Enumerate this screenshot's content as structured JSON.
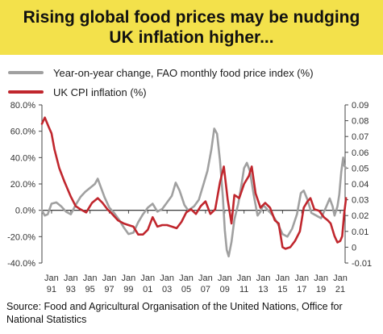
{
  "title": "Rising global food prices may be nudging UK inflation higher...",
  "source": "Source: Food and Agricultural Organisation of the United Nations, Office for National Statistics",
  "colors": {
    "banner": "#f3e14b",
    "fao": "#a0a0a0",
    "cpi": "#c0262d"
  },
  "chart_data": {
    "type": "line",
    "title": "Rising global food prices may be nudging UK inflation higher...",
    "x_tick_labels": [
      [
        "Jan",
        "91"
      ],
      [
        "Jan",
        "93"
      ],
      [
        "Jan",
        "95"
      ],
      [
        "Jan",
        "97"
      ],
      [
        "Jan",
        "99"
      ],
      [
        "Jan",
        "01"
      ],
      [
        "Jan",
        "03"
      ],
      [
        "Jan",
        "05"
      ],
      [
        "Jan",
        "07"
      ],
      [
        "Jan",
        "09"
      ],
      [
        "Jan",
        "11"
      ],
      [
        "Jan",
        "13"
      ],
      [
        "Jan",
        "15"
      ],
      [
        "Jan",
        "17"
      ],
      [
        "Jan",
        "19"
      ],
      [
        "Jan",
        "21"
      ]
    ],
    "xlim": [
      1990,
      2021.5
    ],
    "y_left": {
      "ticks": [
        "80.0%",
        "60.0%",
        "40.0%",
        "20.0%",
        "0.0%",
        "-20.0%",
        "-40.0%"
      ],
      "lim": [
        -40,
        80
      ]
    },
    "y_right": {
      "ticks": [
        "0.09",
        "0.08",
        "0.07",
        "0.06",
        "0.05",
        "0.04",
        "0.03",
        "0.02",
        "0.01",
        "0",
        "-0.01"
      ],
      "lim": [
        -0.01,
        0.09
      ]
    },
    "grid": false,
    "legend": "top-left",
    "series": [
      {
        "name": "Year-on-year change, FAO monthly food price index (%)",
        "axis": "left",
        "points": [
          [
            1990.0,
            0
          ],
          [
            1990.3,
            -4
          ],
          [
            1990.6,
            -3
          ],
          [
            1991.0,
            5
          ],
          [
            1991.5,
            6
          ],
          [
            1992.0,
            3
          ],
          [
            1992.5,
            -1
          ],
          [
            1993.0,
            -3
          ],
          [
            1993.5,
            4
          ],
          [
            1994.0,
            10
          ],
          [
            1994.5,
            14
          ],
          [
            1995.0,
            17
          ],
          [
            1995.5,
            20
          ],
          [
            1995.8,
            24
          ],
          [
            1996.1,
            18
          ],
          [
            1996.5,
            10
          ],
          [
            1997.0,
            2
          ],
          [
            1997.5,
            -2
          ],
          [
            1998.0,
            -7
          ],
          [
            1998.5,
            -13
          ],
          [
            1999.0,
            -18
          ],
          [
            1999.5,
            -17
          ],
          [
            2000.0,
            -9
          ],
          [
            2000.5,
            -3
          ],
          [
            2001.0,
            2
          ],
          [
            2001.5,
            5
          ],
          [
            2002.0,
            -1
          ],
          [
            2002.5,
            1
          ],
          [
            2003.0,
            6
          ],
          [
            2003.5,
            11
          ],
          [
            2003.9,
            21
          ],
          [
            2004.3,
            15
          ],
          [
            2004.8,
            4
          ],
          [
            2005.2,
            0
          ],
          [
            2005.8,
            3
          ],
          [
            2006.3,
            8
          ],
          [
            2006.8,
            20
          ],
          [
            2007.2,
            30
          ],
          [
            2007.6,
            46
          ],
          [
            2007.9,
            62
          ],
          [
            2008.2,
            58
          ],
          [
            2008.5,
            38
          ],
          [
            2008.8,
            10
          ],
          [
            2009.0,
            -15
          ],
          [
            2009.2,
            -30
          ],
          [
            2009.4,
            -35
          ],
          [
            2009.7,
            -24
          ],
          [
            2010.0,
            -7
          ],
          [
            2010.4,
            5
          ],
          [
            2010.7,
            18
          ],
          [
            2011.0,
            32
          ],
          [
            2011.3,
            36
          ],
          [
            2011.6,
            30
          ],
          [
            2012.0,
            12
          ],
          [
            2012.4,
            -4
          ],
          [
            2012.7,
            -1
          ],
          [
            2013.0,
            4
          ],
          [
            2013.5,
            0
          ],
          [
            2014.0,
            -4
          ],
          [
            2014.5,
            -10
          ],
          [
            2015.0,
            -18
          ],
          [
            2015.5,
            -20
          ],
          [
            2016.0,
            -14
          ],
          [
            2016.5,
            -3
          ],
          [
            2016.9,
            13
          ],
          [
            2017.2,
            15
          ],
          [
            2017.6,
            8
          ],
          [
            2018.0,
            -2
          ],
          [
            2018.5,
            -4
          ],
          [
            2019.0,
            -6
          ],
          [
            2019.5,
            2
          ],
          [
            2019.9,
            9
          ],
          [
            2020.2,
            3
          ],
          [
            2020.4,
            -4
          ],
          [
            2020.7,
            3
          ],
          [
            2020.9,
            12
          ],
          [
            2021.1,
            29
          ],
          [
            2021.3,
            40
          ],
          [
            2021.4,
            34
          ],
          [
            2021.6,
            32
          ]
        ]
      },
      {
        "name": "UK CPI inflation (%)",
        "axis": "right",
        "points": [
          [
            1990.0,
            0.078
          ],
          [
            1990.3,
            0.082
          ],
          [
            1990.7,
            0.076
          ],
          [
            1991.0,
            0.072
          ],
          [
            1991.3,
            0.062
          ],
          [
            1991.8,
            0.05
          ],
          [
            1992.3,
            0.042
          ],
          [
            1993.0,
            0.032
          ],
          [
            1993.5,
            0.026
          ],
          [
            1994.0,
            0.024
          ],
          [
            1994.6,
            0.022
          ],
          [
            1995.2,
            0.028
          ],
          [
            1995.8,
            0.031
          ],
          [
            1996.3,
            0.028
          ],
          [
            1996.8,
            0.024
          ],
          [
            1997.3,
            0.021
          ],
          [
            1997.9,
            0.017
          ],
          [
            1998.5,
            0.015
          ],
          [
            1999.0,
            0.014
          ],
          [
            1999.5,
            0.013
          ],
          [
            2000.0,
            0.008
          ],
          [
            2000.5,
            0.008
          ],
          [
            2001.0,
            0.011
          ],
          [
            2001.5,
            0.019
          ],
          [
            2002.0,
            0.013
          ],
          [
            2002.5,
            0.014
          ],
          [
            2003.0,
            0.014
          ],
          [
            2003.5,
            0.013
          ],
          [
            2004.0,
            0.012
          ],
          [
            2004.5,
            0.016
          ],
          [
            2005.0,
            0.022
          ],
          [
            2005.5,
            0.024
          ],
          [
            2006.0,
            0.021
          ],
          [
            2006.5,
            0.026
          ],
          [
            2007.0,
            0.029
          ],
          [
            2007.5,
            0.021
          ],
          [
            2008.0,
            0.024
          ],
          [
            2008.5,
            0.041
          ],
          [
            2008.9,
            0.051
          ],
          [
            2009.3,
            0.03
          ],
          [
            2009.7,
            0.015
          ],
          [
            2010.0,
            0.033
          ],
          [
            2010.5,
            0.031
          ],
          [
            2011.0,
            0.04
          ],
          [
            2011.5,
            0.045
          ],
          [
            2011.8,
            0.051
          ],
          [
            2012.2,
            0.034
          ],
          [
            2012.7,
            0.025
          ],
          [
            2013.2,
            0.028
          ],
          [
            2013.7,
            0.025
          ],
          [
            2014.2,
            0.017
          ],
          [
            2014.6,
            0.015
          ],
          [
            2015.0,
            0.0
          ],
          [
            2015.3,
            -0.001
          ],
          [
            2015.8,
            0.0
          ],
          [
            2016.3,
            0.004
          ],
          [
            2016.8,
            0.01
          ],
          [
            2017.2,
            0.025
          ],
          [
            2017.6,
            0.029
          ],
          [
            2017.9,
            0.031
          ],
          [
            2018.3,
            0.024
          ],
          [
            2018.8,
            0.023
          ],
          [
            2019.3,
            0.019
          ],
          [
            2019.7,
            0.017
          ],
          [
            2020.0,
            0.015
          ],
          [
            2020.4,
            0.007
          ],
          [
            2020.7,
            0.003
          ],
          [
            2021.0,
            0.004
          ],
          [
            2021.2,
            0.007
          ],
          [
            2021.4,
            0.021
          ],
          [
            2021.6,
            0.031
          ]
        ]
      }
    ]
  }
}
